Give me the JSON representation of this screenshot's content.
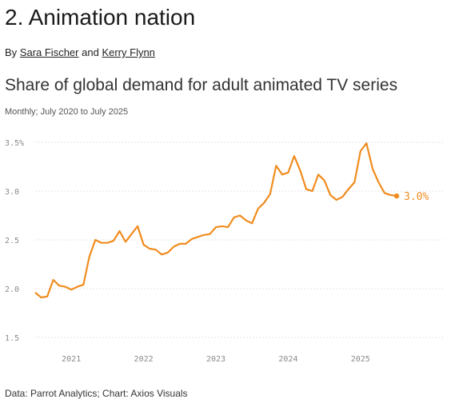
{
  "header": {
    "section_title": "2. Animation nation",
    "byline_prefix": "By",
    "author1": "Sara Fischer",
    "byline_and": "and",
    "author2": "Kerry Flynn"
  },
  "footer": {
    "source": "Data: Parrot Analytics; Chart: Axios Visuals"
  },
  "chart_data": {
    "type": "line",
    "title": "Share of global demand for adult animated TV series",
    "subtitle": "Monthly; July 2020 to July 2025",
    "color": "#f08c1e",
    "ylim": [
      1.5,
      3.5
    ],
    "xlim": [
      "2020-07",
      "2025-07"
    ],
    "y_ticks": [
      "1.5",
      "2.0",
      "2.5",
      "3.0",
      "3.5%"
    ],
    "y_tick_values": [
      1.5,
      2.0,
      2.5,
      3.0,
      3.5
    ],
    "x_ticks": [
      "2021",
      "2022",
      "2023",
      "2024",
      "2025"
    ],
    "x_tick_values": [
      "2021-01",
      "2022-01",
      "2023-01",
      "2024-01",
      "2025-01"
    ],
    "grid": true,
    "end_label": "3.0%",
    "series": [
      {
        "x": [
          "2020-07",
          "2020-08",
          "2020-09",
          "2020-10",
          "2020-11",
          "2020-12",
          "2021-01",
          "2021-02",
          "2021-03",
          "2021-04",
          "2021-05",
          "2021-06",
          "2021-07",
          "2021-08",
          "2021-09",
          "2021-10",
          "2021-11",
          "2021-12",
          "2022-01",
          "2022-02",
          "2022-03",
          "2022-04",
          "2022-05",
          "2022-06",
          "2022-07",
          "2022-08",
          "2022-09",
          "2022-10",
          "2022-11",
          "2022-12",
          "2023-01",
          "2023-02",
          "2023-03",
          "2023-04",
          "2023-05",
          "2023-06",
          "2023-07",
          "2023-08",
          "2023-09",
          "2023-10",
          "2023-11",
          "2023-12",
          "2024-01",
          "2024-02",
          "2024-03",
          "2024-04",
          "2024-05",
          "2024-06",
          "2024-07",
          "2024-08",
          "2024-09",
          "2024-10",
          "2024-11",
          "2024-12",
          "2025-01",
          "2025-02",
          "2025-03",
          "2025-04",
          "2025-05",
          "2025-06",
          "2025-07"
        ],
        "values": [
          1.96,
          1.91,
          1.92,
          2.09,
          2.03,
          2.02,
          1.99,
          2.02,
          2.04,
          2.33,
          2.5,
          2.47,
          2.47,
          2.49,
          2.59,
          2.48,
          2.56,
          2.64,
          2.45,
          2.41,
          2.4,
          2.35,
          2.37,
          2.43,
          2.46,
          2.46,
          2.51,
          2.53,
          2.55,
          2.56,
          2.63,
          2.64,
          2.63,
          2.73,
          2.75,
          2.7,
          2.67,
          2.82,
          2.88,
          2.97,
          3.26,
          3.17,
          3.19,
          3.36,
          3.21,
          3.02,
          3.0,
          3.17,
          3.11,
          2.96,
          2.91,
          2.94,
          3.02,
          3.09,
          3.41,
          3.49,
          3.23,
          3.09,
          2.98,
          2.96,
          2.95
        ]
      }
    ]
  }
}
